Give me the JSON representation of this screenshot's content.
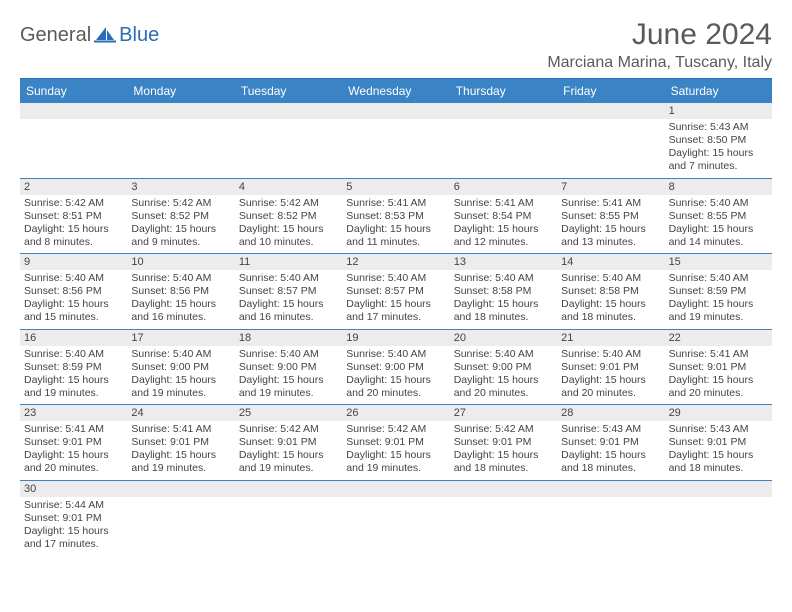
{
  "logo": {
    "part1": "General",
    "part2": "Blue"
  },
  "title": "June 2024",
  "location": "Marciana Marina, Tuscany, Italy",
  "colors": {
    "header_bg": "#3a83c5",
    "header_text": "#ffffff",
    "border": "#3a83c5",
    "daynum_bg": "#ececec",
    "text": "#444444",
    "logo_gray": "#5a5a5a",
    "logo_blue": "#2a6db5",
    "page_bg": "#ffffff"
  },
  "day_names": [
    "Sunday",
    "Monday",
    "Tuesday",
    "Wednesday",
    "Thursday",
    "Friday",
    "Saturday"
  ],
  "weeks": [
    [
      {
        "blank": true
      },
      {
        "blank": true
      },
      {
        "blank": true
      },
      {
        "blank": true
      },
      {
        "blank": true
      },
      {
        "blank": true
      },
      {
        "day": "1",
        "sunrise": "Sunrise: 5:43 AM",
        "sunset": "Sunset: 8:50 PM",
        "daylight": "Daylight: 15 hours and 7 minutes."
      }
    ],
    [
      {
        "day": "2",
        "sunrise": "Sunrise: 5:42 AM",
        "sunset": "Sunset: 8:51 PM",
        "daylight": "Daylight: 15 hours and 8 minutes."
      },
      {
        "day": "3",
        "sunrise": "Sunrise: 5:42 AM",
        "sunset": "Sunset: 8:52 PM",
        "daylight": "Daylight: 15 hours and 9 minutes."
      },
      {
        "day": "4",
        "sunrise": "Sunrise: 5:42 AM",
        "sunset": "Sunset: 8:52 PM",
        "daylight": "Daylight: 15 hours and 10 minutes."
      },
      {
        "day": "5",
        "sunrise": "Sunrise: 5:41 AM",
        "sunset": "Sunset: 8:53 PM",
        "daylight": "Daylight: 15 hours and 11 minutes."
      },
      {
        "day": "6",
        "sunrise": "Sunrise: 5:41 AM",
        "sunset": "Sunset: 8:54 PM",
        "daylight": "Daylight: 15 hours and 12 minutes."
      },
      {
        "day": "7",
        "sunrise": "Sunrise: 5:41 AM",
        "sunset": "Sunset: 8:55 PM",
        "daylight": "Daylight: 15 hours and 13 minutes."
      },
      {
        "day": "8",
        "sunrise": "Sunrise: 5:40 AM",
        "sunset": "Sunset: 8:55 PM",
        "daylight": "Daylight: 15 hours and 14 minutes."
      }
    ],
    [
      {
        "day": "9",
        "sunrise": "Sunrise: 5:40 AM",
        "sunset": "Sunset: 8:56 PM",
        "daylight": "Daylight: 15 hours and 15 minutes."
      },
      {
        "day": "10",
        "sunrise": "Sunrise: 5:40 AM",
        "sunset": "Sunset: 8:56 PM",
        "daylight": "Daylight: 15 hours and 16 minutes."
      },
      {
        "day": "11",
        "sunrise": "Sunrise: 5:40 AM",
        "sunset": "Sunset: 8:57 PM",
        "daylight": "Daylight: 15 hours and 16 minutes."
      },
      {
        "day": "12",
        "sunrise": "Sunrise: 5:40 AM",
        "sunset": "Sunset: 8:57 PM",
        "daylight": "Daylight: 15 hours and 17 minutes."
      },
      {
        "day": "13",
        "sunrise": "Sunrise: 5:40 AM",
        "sunset": "Sunset: 8:58 PM",
        "daylight": "Daylight: 15 hours and 18 minutes."
      },
      {
        "day": "14",
        "sunrise": "Sunrise: 5:40 AM",
        "sunset": "Sunset: 8:58 PM",
        "daylight": "Daylight: 15 hours and 18 minutes."
      },
      {
        "day": "15",
        "sunrise": "Sunrise: 5:40 AM",
        "sunset": "Sunset: 8:59 PM",
        "daylight": "Daylight: 15 hours and 19 minutes."
      }
    ],
    [
      {
        "day": "16",
        "sunrise": "Sunrise: 5:40 AM",
        "sunset": "Sunset: 8:59 PM",
        "daylight": "Daylight: 15 hours and 19 minutes."
      },
      {
        "day": "17",
        "sunrise": "Sunrise: 5:40 AM",
        "sunset": "Sunset: 9:00 PM",
        "daylight": "Daylight: 15 hours and 19 minutes."
      },
      {
        "day": "18",
        "sunrise": "Sunrise: 5:40 AM",
        "sunset": "Sunset: 9:00 PM",
        "daylight": "Daylight: 15 hours and 19 minutes."
      },
      {
        "day": "19",
        "sunrise": "Sunrise: 5:40 AM",
        "sunset": "Sunset: 9:00 PM",
        "daylight": "Daylight: 15 hours and 20 minutes."
      },
      {
        "day": "20",
        "sunrise": "Sunrise: 5:40 AM",
        "sunset": "Sunset: 9:00 PM",
        "daylight": "Daylight: 15 hours and 20 minutes."
      },
      {
        "day": "21",
        "sunrise": "Sunrise: 5:40 AM",
        "sunset": "Sunset: 9:01 PM",
        "daylight": "Daylight: 15 hours and 20 minutes."
      },
      {
        "day": "22",
        "sunrise": "Sunrise: 5:41 AM",
        "sunset": "Sunset: 9:01 PM",
        "daylight": "Daylight: 15 hours and 20 minutes."
      }
    ],
    [
      {
        "day": "23",
        "sunrise": "Sunrise: 5:41 AM",
        "sunset": "Sunset: 9:01 PM",
        "daylight": "Daylight: 15 hours and 20 minutes."
      },
      {
        "day": "24",
        "sunrise": "Sunrise: 5:41 AM",
        "sunset": "Sunset: 9:01 PM",
        "daylight": "Daylight: 15 hours and 19 minutes."
      },
      {
        "day": "25",
        "sunrise": "Sunrise: 5:42 AM",
        "sunset": "Sunset: 9:01 PM",
        "daylight": "Daylight: 15 hours and 19 minutes."
      },
      {
        "day": "26",
        "sunrise": "Sunrise: 5:42 AM",
        "sunset": "Sunset: 9:01 PM",
        "daylight": "Daylight: 15 hours and 19 minutes."
      },
      {
        "day": "27",
        "sunrise": "Sunrise: 5:42 AM",
        "sunset": "Sunset: 9:01 PM",
        "daylight": "Daylight: 15 hours and 18 minutes."
      },
      {
        "day": "28",
        "sunrise": "Sunrise: 5:43 AM",
        "sunset": "Sunset: 9:01 PM",
        "daylight": "Daylight: 15 hours and 18 minutes."
      },
      {
        "day": "29",
        "sunrise": "Sunrise: 5:43 AM",
        "sunset": "Sunset: 9:01 PM",
        "daylight": "Daylight: 15 hours and 18 minutes."
      }
    ],
    [
      {
        "day": "30",
        "sunrise": "Sunrise: 5:44 AM",
        "sunset": "Sunset: 9:01 PM",
        "daylight": "Daylight: 15 hours and 17 minutes."
      },
      {
        "blank": true
      },
      {
        "blank": true
      },
      {
        "blank": true
      },
      {
        "blank": true
      },
      {
        "blank": true
      },
      {
        "blank": true
      }
    ]
  ]
}
